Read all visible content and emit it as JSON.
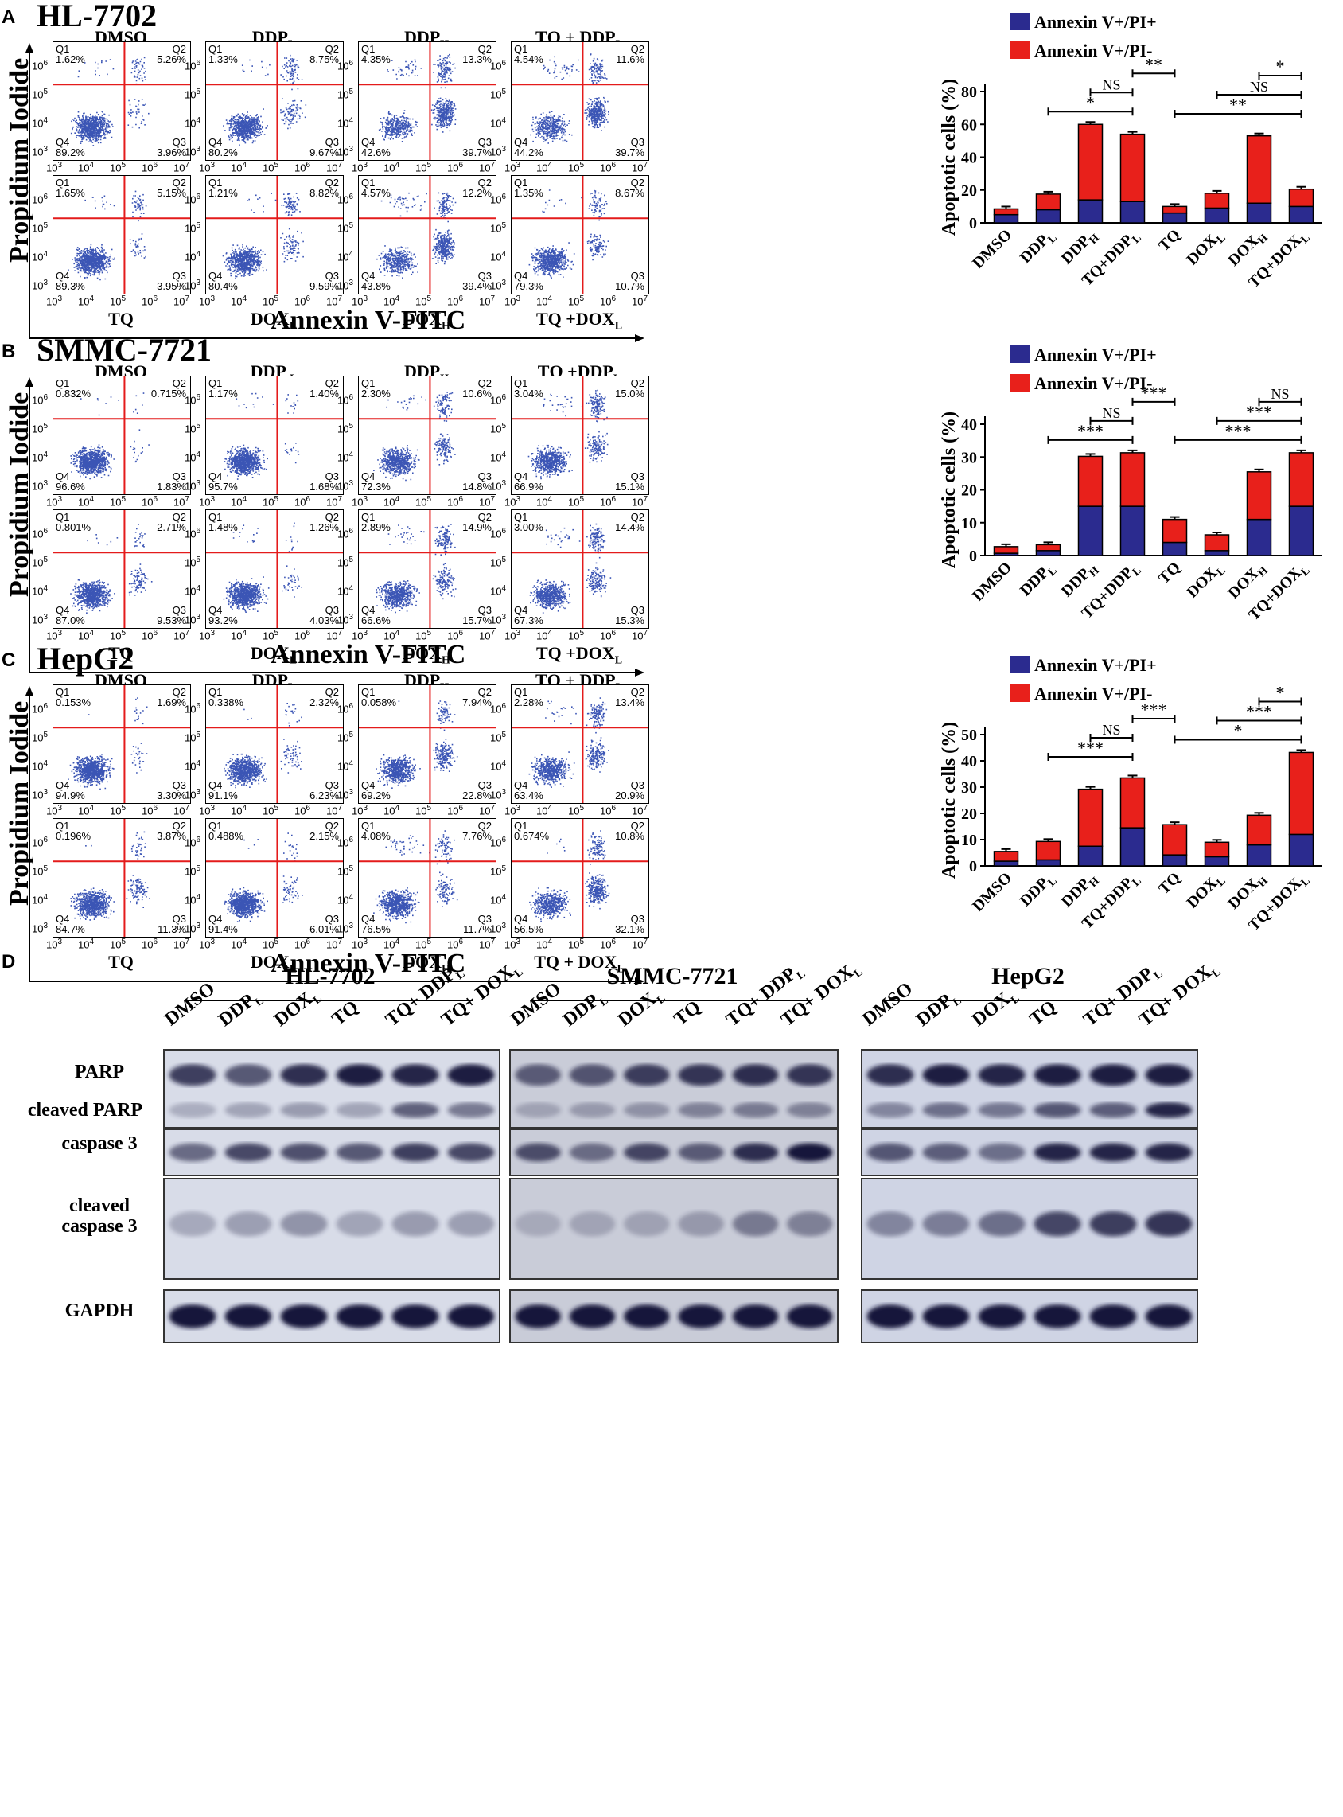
{
  "panels": [
    {
      "letter": "A",
      "cell_line": "HL-7702",
      "x_axis_label": "Annexin V-FITC",
      "y_axis_label": "Propidium Iodide",
      "flow_plots": [
        {
          "title": "DMSO",
          "title_sub": "",
          "q1": "1.62%",
          "q2": "5.26%",
          "q3": "3.96%",
          "q4": "89.2%",
          "bottom_label": "",
          "bottom_sub": ""
        },
        {
          "title": "DDP",
          "title_sub": "L",
          "q1": "1.33%",
          "q2": "8.75%",
          "q3": "9.67%",
          "q4": "80.2%",
          "bottom_label": "",
          "bottom_sub": ""
        },
        {
          "title": "DDP",
          "title_sub": "H",
          "q1": "4.35%",
          "q2": "13.3%",
          "q3": "39.7%",
          "q4": "42.6%",
          "bottom_label": "",
          "bottom_sub": ""
        },
        {
          "title": "TQ + DDP",
          "title_sub": "L",
          "q1": "4.54%",
          "q2": "11.6%",
          "q3": "39.7%",
          "q4": "44.2%",
          "bottom_label": "",
          "bottom_sub": ""
        },
        {
          "title": "",
          "title_sub": "",
          "q1": "1.65%",
          "q2": "5.15%",
          "q3": "3.95%",
          "q4": "89.3%",
          "bottom_label": "TQ",
          "bottom_sub": ""
        },
        {
          "title": "",
          "title_sub": "",
          "q1": "1.21%",
          "q2": "8.82%",
          "q3": "9.59%",
          "q4": "80.4%",
          "bottom_label": "DOX",
          "bottom_sub": "L"
        },
        {
          "title": "",
          "title_sub": "",
          "q1": "4.57%",
          "q2": "12.2%",
          "q3": "39.4%",
          "q4": "43.8%",
          "bottom_label": "DOX",
          "bottom_sub": "H"
        },
        {
          "title": "",
          "title_sub": "",
          "q1": "1.35%",
          "q2": "8.67%",
          "q3": "10.7%",
          "q4": "79.3%",
          "bottom_label": "TQ +DOX",
          "bottom_sub": "L"
        }
      ]
    },
    {
      "letter": "B",
      "cell_line": "SMMC-7721",
      "x_axis_label": "Annexin V-FITC",
      "y_axis_label": "Propidium Iodide",
      "flow_plots": [
        {
          "title": "DMSO",
          "title_sub": "",
          "q1": "0.832%",
          "q2": "0.715%",
          "q3": "1.83%",
          "q4": "96.6%",
          "bottom_label": "",
          "bottom_sub": ""
        },
        {
          "title": "DDP ",
          "title_sub": "L",
          "q1": "1.17%",
          "q2": "1.40%",
          "q3": "1.68%",
          "q4": "95.7%",
          "bottom_label": "",
          "bottom_sub": ""
        },
        {
          "title": "DDP",
          "title_sub": "H",
          "q1": "2.30%",
          "q2": "10.6%",
          "q3": "14.8%",
          "q4": "72.3%",
          "bottom_label": "",
          "bottom_sub": ""
        },
        {
          "title": "TQ +DDP",
          "title_sub": "L",
          "q1": "3.04%",
          "q2": "15.0%",
          "q3": "15.1%",
          "q4": "66.9%",
          "bottom_label": "",
          "bottom_sub": ""
        },
        {
          "title": "",
          "title_sub": "",
          "q1": "0.801%",
          "q2": "2.71%",
          "q3": "9.53%",
          "q4": "87.0%",
          "bottom_label": "TQ",
          "bottom_sub": ""
        },
        {
          "title": "",
          "title_sub": "",
          "q1": "1.48%",
          "q2": "1.26%",
          "q3": "4.03%",
          "q4": "93.2%",
          "bottom_label": "DOX",
          "bottom_sub": "L"
        },
        {
          "title": "",
          "title_sub": "",
          "q1": "2.89%",
          "q2": "14.9%",
          "q3": "15.7%",
          "q4": "66.6%",
          "bottom_label": "DOX",
          "bottom_sub": "H"
        },
        {
          "title": "",
          "title_sub": "",
          "q1": "3.00%",
          "q2": "14.4%",
          "q3": "15.3%",
          "q4": "67.3%",
          "bottom_label": "TQ +DOX",
          "bottom_sub": "L"
        }
      ]
    },
    {
      "letter": "C",
      "cell_line": "HepG2",
      "x_axis_label": "Annexin V-FITC",
      "y_axis_label": "Propidium Iodide",
      "flow_plots": [
        {
          "title": "DMSO",
          "title_sub": "",
          "q1": "0.153%",
          "q2": "1.69%",
          "q3": "3.30%",
          "q4": "94.9%",
          "bottom_label": "",
          "bottom_sub": ""
        },
        {
          "title": "DDP",
          "title_sub": "L",
          "q1": "0.338%",
          "q2": "2.32%",
          "q3": "6.23%",
          "q4": "91.1%",
          "bottom_label": "",
          "bottom_sub": ""
        },
        {
          "title": "DDP",
          "title_sub": "H",
          "q1": "0.058%",
          "q2": "7.94%",
          "q3": "22.8%",
          "q4": "69.2%",
          "bottom_label": "",
          "bottom_sub": ""
        },
        {
          "title": "TQ + DDP",
          "title_sub": "L",
          "q1": "2.28%",
          "q2": "13.4%",
          "q3": "20.9%",
          "q4": "63.4%",
          "bottom_label": "",
          "bottom_sub": ""
        },
        {
          "title": "",
          "title_sub": "",
          "q1": "0.196%",
          "q2": "3.87%",
          "q3": "11.3%",
          "q4": "84.7%",
          "bottom_label": "TQ",
          "bottom_sub": ""
        },
        {
          "title": "",
          "title_sub": "",
          "q1": "0.488%",
          "q2": "2.15%",
          "q3": "6.01%",
          "q4": "91.4%",
          "bottom_label": "DOX",
          "bottom_sub": "L"
        },
        {
          "title": "",
          "title_sub": "",
          "q1": "4.08%",
          "q2": "7.76%",
          "q3": "11.7%",
          "q4": "76.5%",
          "bottom_label": "DOX",
          "bottom_sub": "H"
        },
        {
          "title": "",
          "title_sub": "",
          "q1": "0.674%",
          "q2": "10.8%",
          "q3": "32.1%",
          "q4": "56.5%",
          "bottom_label": "TQ + DOX",
          "bottom_sub": "L"
        }
      ]
    }
  ],
  "flow_common": {
    "quadrant_names": [
      "Q1",
      "Q2",
      "Q3",
      "Q4"
    ],
    "tick_exponents": [
      "3",
      "4",
      "5",
      "6",
      "7"
    ],
    "tick_base": "10"
  },
  "chart_data": [
    {
      "type": "bar",
      "stacked": true,
      "panel": "A",
      "categories": [
        "DMSO",
        "DDP_L",
        "DDP_H",
        "TQ+DDP_L",
        "TQ",
        "DOX_L",
        "DOX_H",
        "TQ+DOX_L"
      ],
      "category_labels": [
        {
          "main": "DMSO",
          "sub": ""
        },
        {
          "main": "DDP",
          "sub": "L"
        },
        {
          "main": "DDP",
          "sub": "H"
        },
        {
          "main": "TQ+DDP",
          "sub": "L"
        },
        {
          "main": "TQ",
          "sub": ""
        },
        {
          "main": "DOX",
          "sub": "L"
        },
        {
          "main": "DOX",
          "sub": "H"
        },
        {
          "main": "TQ+DOX",
          "sub": "L"
        }
      ],
      "series": [
        {
          "name": "Annexin V+/PI+",
          "color": "#2b2b8f",
          "values": [
            5,
            8,
            14,
            13,
            6,
            9,
            12,
            10
          ]
        },
        {
          "name": "Annexin V+/PI-",
          "color": "#e8201b",
          "values": [
            3.5,
            9.5,
            46,
            41,
            4,
            9,
            41,
            10.5
          ]
        }
      ],
      "ylabel": "Apoptotic cells (%)",
      "ylim": [
        0,
        80
      ],
      "yticks": [
        0,
        20,
        40,
        60,
        80
      ],
      "significance": [
        {
          "from": 1,
          "to": 3,
          "label": "*"
        },
        {
          "from": 2,
          "to": 3,
          "label": "NS"
        },
        {
          "from": 3,
          "to": 4,
          "label": "**"
        },
        {
          "from": 4,
          "to": 7,
          "label": "**"
        },
        {
          "from": 5,
          "to": 7,
          "label": "NS"
        },
        {
          "from": 6,
          "to": 7,
          "label": "*"
        }
      ]
    },
    {
      "type": "bar",
      "stacked": true,
      "panel": "B",
      "categories": [
        "DMSO",
        "DDP_L",
        "DDP_H",
        "TQ+DDP_L",
        "TQ",
        "DOX_L",
        "DOX_H",
        "TQ+DOX_L"
      ],
      "category_labels": [
        {
          "main": "DMSO",
          "sub": ""
        },
        {
          "main": "DDP",
          "sub": "L"
        },
        {
          "main": "DDP",
          "sub": "H"
        },
        {
          "main": "TQ+DDP",
          "sub": "L"
        },
        {
          "main": "TQ",
          "sub": ""
        },
        {
          "main": "DOX",
          "sub": "L"
        },
        {
          "main": "DOX",
          "sub": "H"
        },
        {
          "main": "TQ+DOX",
          "sub": "L"
        }
      ],
      "series": [
        {
          "name": "Annexin V+/PI+",
          "color": "#2b2b8f",
          "values": [
            0.7,
            1.5,
            15,
            15,
            4,
            1.5,
            11,
            15
          ]
        },
        {
          "name": "Annexin V+/PI-",
          "color": "#e8201b",
          "values": [
            2,
            1.8,
            15.2,
            16.3,
            7,
            4.8,
            14.5,
            16.3
          ]
        }
      ],
      "ylabel": "Apoptotic cells (%)",
      "ylim": [
        0,
        40
      ],
      "yticks": [
        0,
        10,
        20,
        30,
        40
      ],
      "significance": [
        {
          "from": 1,
          "to": 3,
          "label": "***"
        },
        {
          "from": 2,
          "to": 3,
          "label": "NS"
        },
        {
          "from": 3,
          "to": 4,
          "label": "***"
        },
        {
          "from": 4,
          "to": 7,
          "label": "***"
        },
        {
          "from": 5,
          "to": 7,
          "label": "***"
        },
        {
          "from": 6,
          "to": 7,
          "label": "NS"
        }
      ]
    },
    {
      "type": "bar",
      "stacked": true,
      "panel": "C",
      "categories": [
        "DMSO",
        "DDP_L",
        "DDP_H",
        "TQ+DDP_L",
        "TQ",
        "DOX_L",
        "DOX_H",
        "TQ+DOX_L"
      ],
      "category_labels": [
        {
          "main": "DMSO",
          "sub": ""
        },
        {
          "main": "DDP",
          "sub": "L"
        },
        {
          "main": "DDP",
          "sub": "H"
        },
        {
          "main": "TQ+DDP",
          "sub": "L"
        },
        {
          "main": "TQ",
          "sub": ""
        },
        {
          "main": "DOX",
          "sub": "L"
        },
        {
          "main": "DOX",
          "sub": "H"
        },
        {
          "main": "TQ+DOX",
          "sub": "L"
        }
      ],
      "series": [
        {
          "name": "Annexin V+/PI+",
          "color": "#2b2b8f",
          "values": [
            1.8,
            2.3,
            7.5,
            14.5,
            4.2,
            3.5,
            8,
            12
          ]
        },
        {
          "name": "Annexin V+/PI-",
          "color": "#e8201b",
          "values": [
            3.7,
            7,
            21.7,
            19,
            11.5,
            5.5,
            11.3,
            31.2
          ]
        }
      ],
      "ylabel": "Apoptotic cells (%)",
      "ylim": [
        0,
        50
      ],
      "yticks": [
        0,
        10,
        20,
        30,
        40,
        50
      ],
      "significance": [
        {
          "from": 1,
          "to": 3,
          "label": "***"
        },
        {
          "from": 2,
          "to": 3,
          "label": "NS"
        },
        {
          "from": 3,
          "to": 4,
          "label": "***"
        },
        {
          "from": 4,
          "to": 7,
          "label": "*"
        },
        {
          "from": 5,
          "to": 7,
          "label": "***"
        },
        {
          "from": 6,
          "to": 7,
          "label": "*"
        }
      ]
    }
  ],
  "western": {
    "letter": "D",
    "groups": [
      {
        "title": "HL-7702",
        "lanes": [
          {
            "main": "DMSO",
            "sub": ""
          },
          {
            "main": "DDP",
            "sub": "L"
          },
          {
            "main": "DOX",
            "sub": "L"
          },
          {
            "main": "TQ",
            "sub": ""
          },
          {
            "main": "TQ+ DDP",
            "sub": "L"
          },
          {
            "main": "TQ+ DOX",
            "sub": "L"
          }
        ]
      },
      {
        "title": "SMMC-7721",
        "lanes": [
          {
            "main": "DMSO",
            "sub": ""
          },
          {
            "main": "DDP",
            "sub": "L"
          },
          {
            "main": "DOX",
            "sub": "L"
          },
          {
            "main": "TQ",
            "sub": ""
          },
          {
            "main": "TQ+ DDP",
            "sub": "L"
          },
          {
            "main": "TQ+ DOX",
            "sub": "L"
          }
        ]
      },
      {
        "title": "HepG2",
        "lanes": [
          {
            "main": "DMSO",
            "sub": ""
          },
          {
            "main": "DDP",
            "sub": "L"
          },
          {
            "main": "DOX",
            "sub": "L"
          },
          {
            "main": "TQ",
            "sub": ""
          },
          {
            "main": "TQ+ DDP",
            "sub": "L"
          },
          {
            "main": "TQ+ DOX",
            "sub": "L"
          }
        ]
      }
    ],
    "row_labels": {
      "parp": "PARP",
      "cleaved_parp": "cleaved PARP",
      "caspase3": "caspase 3",
      "cleaved_caspase3_line1": "cleaved",
      "cleaved_caspase3_line2": "caspase 3",
      "gapdh": "GAPDH"
    },
    "band_intensity": {
      "HL-7702": {
        "parp": [
          0.75,
          0.6,
          0.85,
          0.95,
          0.9,
          0.95
        ],
        "cleaved_parp": [
          0.1,
          0.15,
          0.2,
          0.15,
          0.55,
          0.4
        ],
        "caspase3": [
          0.5,
          0.7,
          0.65,
          0.6,
          0.75,
          0.7
        ],
        "cleaved_caspase3": [
          0.12,
          0.18,
          0.25,
          0.15,
          0.2,
          0.18
        ],
        "gapdh": [
          1,
          1,
          1,
          1,
          1,
          1
        ]
      },
      "SMMC-7721": {
        "parp": [
          0.55,
          0.6,
          0.75,
          0.8,
          0.85,
          0.8
        ],
        "cleaved_parp": [
          0.1,
          0.15,
          0.2,
          0.3,
          0.35,
          0.3
        ],
        "caspase3": [
          0.65,
          0.45,
          0.7,
          0.55,
          0.85,
          1
        ],
        "cleaved_caspase3": [
          0.05,
          0.08,
          0.1,
          0.15,
          0.35,
          0.3
        ],
        "gapdh": [
          1,
          1,
          1,
          1,
          1,
          1
        ]
      },
      "HepG2": {
        "parp": [
          0.85,
          0.95,
          0.9,
          0.95,
          0.95,
          0.95
        ],
        "cleaved_parp": [
          0.3,
          0.45,
          0.4,
          0.6,
          0.55,
          0.9
        ],
        "caspase3": [
          0.6,
          0.55,
          0.45,
          0.9,
          0.9,
          0.9
        ],
        "cleaved_caspase3": [
          0.3,
          0.35,
          0.45,
          0.7,
          0.75,
          0.8
        ],
        "gapdh": [
          1,
          1,
          1,
          1,
          1,
          1
        ]
      }
    }
  }
}
